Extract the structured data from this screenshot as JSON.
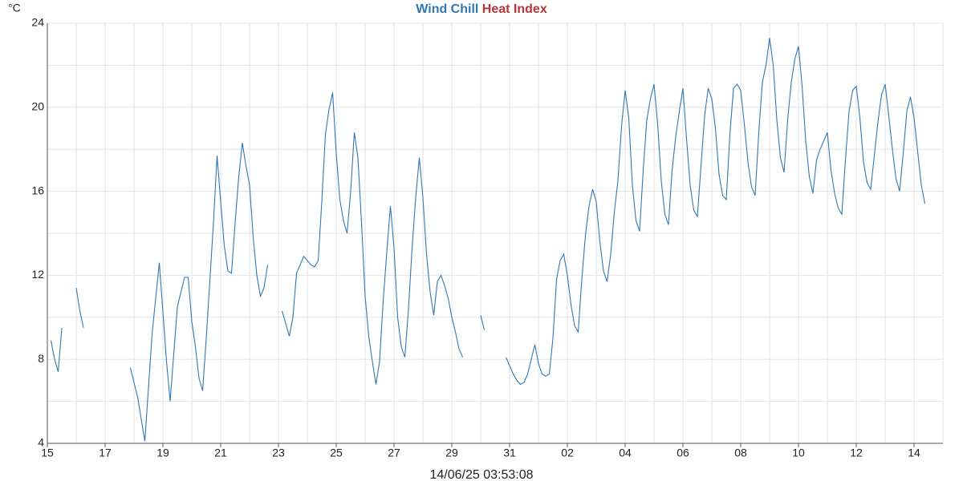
{
  "chart_data": {
    "type": "line",
    "unit": "°C",
    "footer": "14/06/25 03:53:08",
    "xlim": [
      0,
      31
    ],
    "ylim": [
      4,
      24
    ],
    "grid": true,
    "xticks": [
      {
        "value": 0,
        "label": "15"
      },
      {
        "value": 2,
        "label": "17"
      },
      {
        "value": 4,
        "label": "19"
      },
      {
        "value": 6,
        "label": "21"
      },
      {
        "value": 8,
        "label": "23"
      },
      {
        "value": 10,
        "label": "25"
      },
      {
        "value": 12,
        "label": "27"
      },
      {
        "value": 14,
        "label": "29"
      },
      {
        "value": 16,
        "label": "31"
      },
      {
        "value": 18,
        "label": "02"
      },
      {
        "value": 20,
        "label": "04"
      },
      {
        "value": 22,
        "label": "06"
      },
      {
        "value": 24,
        "label": "08"
      },
      {
        "value": 26,
        "label": "10"
      },
      {
        "value": 28,
        "label": "12"
      },
      {
        "value": 30,
        "label": "14"
      }
    ],
    "yticks": [
      4,
      8,
      12,
      16,
      20,
      24
    ],
    "x": [
      0.125,
      0.25,
      0.375,
      0.5,
      0.75,
      1,
      1.125,
      1.25,
      2,
      2.875,
      3.125,
      3.375,
      3.625,
      3.875,
      4.125,
      4.25,
      4.5,
      4.75,
      4.875,
      5,
      5.125,
      5.25,
      5.375,
      5.5,
      5.75,
      5.875,
      6,
      6.125,
      6.25,
      6.375,
      6.5,
      6.625,
      6.75,
      6.875,
      7,
      7.125,
      7.25,
      7.375,
      7.5,
      7.625,
      7.875,
      8.125,
      8.25,
      8.375,
      8.5,
      8.625,
      8.75,
      8.875,
      9,
      9.125,
      9.25,
      9.375,
      9.5,
      9.625,
      9.75,
      9.875,
      10,
      10.125,
      10.25,
      10.375,
      10.5,
      10.625,
      10.75,
      10.875,
      11,
      11.125,
      11.25,
      11.375,
      11.5,
      11.625,
      11.75,
      11.875,
      12,
      12.125,
      12.25,
      12.375,
      12.5,
      12.625,
      12.75,
      12.875,
      13,
      13.125,
      13.25,
      13.375,
      13.5,
      13.625,
      13.75,
      13.875,
      14,
      14.125,
      14.25,
      14.375,
      14.75,
      15,
      15.125,
      15.5,
      15.875,
      16,
      16.125,
      16.25,
      16.375,
      16.5,
      16.625,
      16.75,
      16.875,
      17,
      17.125,
      17.25,
      17.375,
      17.5,
      17.625,
      17.75,
      17.875,
      18,
      18.125,
      18.25,
      18.375,
      18.5,
      18.625,
      18.75,
      18.875,
      19,
      19.125,
      19.25,
      19.375,
      19.5,
      19.625,
      19.75,
      19.875,
      20,
      20.125,
      20.25,
      20.375,
      20.5,
      20.625,
      20.75,
      20.875,
      21,
      21.125,
      21.25,
      21.375,
      21.5,
      21.625,
      21.75,
      21.875,
      22,
      22.125,
      22.25,
      22.375,
      22.5,
      22.625,
      22.75,
      22.875,
      23,
      23.125,
      23.25,
      23.375,
      23.5,
      23.625,
      23.75,
      23.875,
      24,
      24.125,
      24.25,
      24.375,
      24.5,
      24.625,
      24.75,
      24.875,
      25,
      25.125,
      25.25,
      25.375,
      25.5,
      25.625,
      25.75,
      25.875,
      26,
      26.125,
      26.25,
      26.375,
      26.5,
      26.625,
      26.75,
      26.875,
      27,
      27.125,
      27.25,
      27.375,
      27.5,
      27.625,
      27.75,
      27.875,
      28,
      28.125,
      28.25,
      28.375,
      28.5,
      28.625,
      28.75,
      28.875,
      29,
      29.125,
      29.25,
      29.375,
      29.5,
      29.625,
      29.75,
      29.875,
      30,
      30.125,
      30.25,
      30.375
    ],
    "series": [
      {
        "name": "Wind Chill",
        "color": "#2f78b4",
        "values": [
          8.9,
          8.0,
          7.4,
          9.5,
          null,
          11.4,
          10.3,
          9.5,
          null,
          7.6,
          6.2,
          4.1,
          9.2,
          12.6,
          7.9,
          6.0,
          10.5,
          11.9,
          11.9,
          9.8,
          8.6,
          7.1,
          6.5,
          9.0,
          14.5,
          17.7,
          15.5,
          13.4,
          12.2,
          12.1,
          14.5,
          16.7,
          18.3,
          17.2,
          16.3,
          13.8,
          12.0,
          11.0,
          11.4,
          12.5,
          null,
          10.3,
          9.7,
          9.1,
          10.0,
          12.1,
          12.5,
          12.9,
          12.7,
          12.5,
          12.4,
          12.7,
          15.5,
          18.7,
          19.9,
          20.7,
          17.8,
          15.6,
          14.6,
          14.0,
          16.0,
          18.8,
          17.6,
          14.5,
          11.0,
          9.1,
          7.9,
          6.8,
          7.9,
          10.8,
          13.1,
          15.3,
          13.3,
          10.0,
          8.6,
          8.1,
          10.4,
          13.3,
          15.7,
          17.6,
          15.7,
          13.0,
          11.2,
          10.1,
          11.7,
          12.0,
          11.5,
          10.9,
          10.0,
          9.3,
          8.5,
          8.1,
          null,
          10.1,
          9.4,
          null,
          8.1,
          7.7,
          7.3,
          7.0,
          6.8,
          6.9,
          7.3,
          8.0,
          8.7,
          7.8,
          7.3,
          7.2,
          7.3,
          9.0,
          11.8,
          12.7,
          13.0,
          12.0,
          10.6,
          9.6,
          9.3,
          11.8,
          13.9,
          15.3,
          16.1,
          15.5,
          13.6,
          12.2,
          11.7,
          13.0,
          15.0,
          16.5,
          19.1,
          20.8,
          19.5,
          16.3,
          14.6,
          14.1,
          17.0,
          19.4,
          20.4,
          21.1,
          19.2,
          16.5,
          14.9,
          14.4,
          17.0,
          18.6,
          19.8,
          20.9,
          18.5,
          16.3,
          15.1,
          14.8,
          17.2,
          19.6,
          20.9,
          20.4,
          19.0,
          16.8,
          15.8,
          15.6,
          18.7,
          20.9,
          21.1,
          20.8,
          19.2,
          17.4,
          16.2,
          15.8,
          18.8,
          21.2,
          22.0,
          23.3,
          22.0,
          19.4,
          17.6,
          16.9,
          19.4,
          21.2,
          22.3,
          22.9,
          21.0,
          18.4,
          16.7,
          15.9,
          17.5,
          18.0,
          18.4,
          18.8,
          17.0,
          15.9,
          15.2,
          14.9,
          17.5,
          19.8,
          20.8,
          21.0,
          19.5,
          17.4,
          16.4,
          16.1,
          17.7,
          19.3,
          20.6,
          21.1,
          19.6,
          18.0,
          16.6,
          16.0,
          17.8,
          19.8,
          20.5,
          19.5,
          17.9,
          16.3,
          15.4
        ]
      },
      {
        "name": "Heat Index",
        "color": "#b8353a",
        "values": null
      }
    ]
  }
}
